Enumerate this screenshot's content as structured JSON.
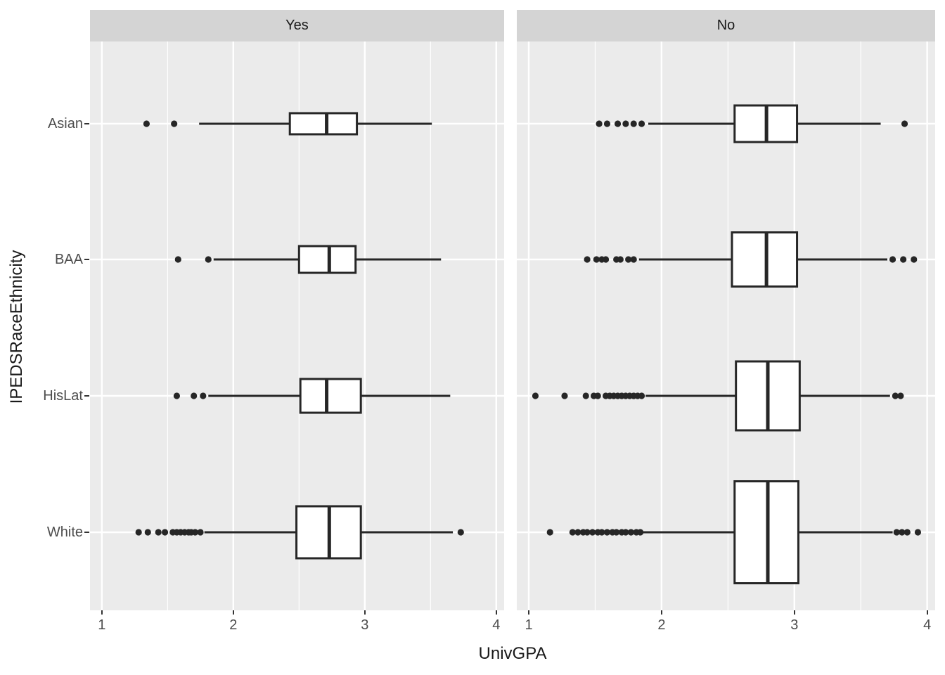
{
  "figure": {
    "background": "#ffffff",
    "panel_background": "#ebebeb",
    "strip_background": "#d4d4d4",
    "grid_color": "#ffffff",
    "box_line_color": "#262626",
    "tick_color": "#333333",
    "tick_label_color": "#4d4d4d",
    "title_color": "#1a1a1a"
  },
  "chart_data": {
    "type": "boxplot",
    "orientation": "horizontal",
    "xlabel": "UnivGPA",
    "ylabel": "IPEDSRaceEthnicity",
    "xlim": [
      0.91,
      4.06
    ],
    "x_ticks": [
      "1",
      "2",
      "3",
      "4"
    ],
    "x_tick_values": [
      1,
      2,
      3,
      4
    ],
    "x_minor_tick_values": [
      1.5,
      2.5,
      3.5
    ],
    "categories": [
      "Asian",
      "BAA",
      "HisLat",
      "White"
    ],
    "grid": "white major/minor vertical, white major horizontal",
    "legend": "none",
    "facets": [
      {
        "label": "Yes",
        "boxes": [
          {
            "category": "Asian",
            "thickness": 30,
            "whisker_min": 1.74,
            "q1": 2.43,
            "median": 2.71,
            "q3": 2.94,
            "whisker_max": 3.51,
            "outliers_low": [
              1.34,
              1.55
            ],
            "outliers_high": []
          },
          {
            "category": "BAA",
            "thickness": 38,
            "whisker_min": 1.85,
            "q1": 2.5,
            "median": 2.73,
            "q3": 2.93,
            "whisker_max": 3.58,
            "outliers_low": [
              1.58,
              1.81
            ],
            "outliers_high": []
          },
          {
            "category": "HisLat",
            "thickness": 48,
            "whisker_min": 1.81,
            "q1": 2.51,
            "median": 2.71,
            "q3": 2.97,
            "whisker_max": 3.65,
            "outliers_low": [
              1.57,
              1.7,
              1.77
            ],
            "outliers_high": []
          },
          {
            "category": "White",
            "thickness": 74,
            "whisker_min": 1.78,
            "q1": 2.48,
            "median": 2.73,
            "q3": 2.97,
            "whisker_max": 3.67,
            "outliers_low": [
              1.28,
              1.35,
              1.43,
              1.48,
              1.54,
              1.57,
              1.6,
              1.63,
              1.66,
              1.68,
              1.71,
              1.75
            ],
            "outliers_high": [
              3.73
            ]
          }
        ]
      },
      {
        "label": "No",
        "boxes": [
          {
            "category": "Asian",
            "thickness": 52,
            "whisker_min": 1.9,
            "q1": 2.55,
            "median": 2.79,
            "q3": 3.02,
            "whisker_max": 3.65,
            "outliers_low": [
              1.53,
              1.59,
              1.67,
              1.73,
              1.79,
              1.85
            ],
            "outliers_high": [
              3.83
            ]
          },
          {
            "category": "BAA",
            "thickness": 77,
            "whisker_min": 1.83,
            "q1": 2.53,
            "median": 2.79,
            "q3": 3.02,
            "whisker_max": 3.7,
            "outliers_low": [
              1.44,
              1.51,
              1.55,
              1.58,
              1.66,
              1.69,
              1.75,
              1.79
            ],
            "outliers_high": [
              3.74,
              3.82,
              3.9
            ]
          },
          {
            "category": "HisLat",
            "thickness": 98,
            "whisker_min": 1.88,
            "q1": 2.56,
            "median": 2.8,
            "q3": 3.04,
            "whisker_max": 3.72,
            "outliers_low": [
              1.05,
              1.27,
              1.43,
              1.49,
              1.52,
              1.58,
              1.61,
              1.64,
              1.67,
              1.7,
              1.73,
              1.76,
              1.79,
              1.82,
              1.85
            ],
            "outliers_high": [
              3.76,
              3.8
            ]
          },
          {
            "category": "White",
            "thickness": 145,
            "whisker_min": 1.86,
            "q1": 2.55,
            "median": 2.8,
            "q3": 3.03,
            "whisker_max": 3.74,
            "outliers_low": [
              1.16,
              1.33,
              1.37,
              1.41,
              1.44,
              1.48,
              1.52,
              1.55,
              1.59,
              1.63,
              1.66,
              1.7,
              1.73,
              1.77,
              1.81,
              1.84
            ],
            "outliers_high": [
              3.77,
              3.81,
              3.85,
              3.93
            ]
          }
        ]
      }
    ]
  }
}
